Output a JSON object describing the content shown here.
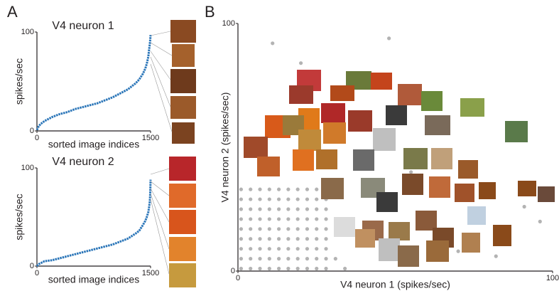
{
  "panels": [
    "A",
    "B"
  ],
  "chart_data": [
    {
      "type": "line",
      "title": "V4 neuron 1",
      "xlabel": "sorted image indices",
      "ylabel": "spikes/sec",
      "xlim": [
        0,
        1500
      ],
      "ylim": [
        0,
        100
      ],
      "xticks": [
        0,
        1500
      ],
      "yticks": [
        0,
        100
      ],
      "x": [
        0,
        25,
        50,
        100,
        200,
        300,
        400,
        500,
        600,
        700,
        800,
        900,
        1000,
        1100,
        1200,
        1300,
        1350,
        1400,
        1430,
        1450,
        1470,
        1480,
        1490,
        1495,
        1500
      ],
      "series": [
        {
          "color": "#2a75b8",
          "values": [
            1,
            5,
            7,
            10,
            14,
            17,
            19,
            22,
            24,
            26,
            28,
            31,
            34,
            38,
            42,
            48,
            52,
            58,
            63,
            68,
            75,
            82,
            88,
            92,
            97
          ]
        }
      ]
    },
    {
      "type": "line",
      "title": "V4 neuron 2",
      "xlabel": "sorted image indices",
      "ylabel": "spikes/sec",
      "xlim": [
        0,
        1500
      ],
      "ylim": [
        0,
        100
      ],
      "xticks": [
        0,
        1500
      ],
      "yticks": [
        0,
        100
      ],
      "x": [
        0,
        25,
        50,
        100,
        200,
        300,
        400,
        500,
        600,
        700,
        800,
        900,
        1000,
        1100,
        1200,
        1300,
        1350,
        1400,
        1430,
        1450,
        1470,
        1480,
        1490,
        1495,
        1500
      ],
      "series": [
        {
          "color": "#2a75b8",
          "values": [
            0,
            2,
            3,
            5,
            6,
            8,
            10,
            12,
            14,
            16,
            18,
            20,
            22,
            25,
            28,
            33,
            36,
            42,
            46,
            50,
            55,
            60,
            66,
            74,
            88
          ]
        }
      ]
    },
    {
      "type": "scatter",
      "xlabel": "V4 neuron 1 (spikes/sec)",
      "ylabel": "V4 neuron 2 (spikes/sec)",
      "xlim": [
        0,
        100
      ],
      "ylim": [
        0,
        100
      ],
      "xticks": [
        0,
        100
      ],
      "yticks": [
        0,
        100
      ],
      "x": [
        1,
        4,
        7,
        10,
        13,
        16,
        19,
        22,
        25,
        28,
        1,
        4,
        7,
        10,
        13,
        16,
        19,
        22,
        25,
        28,
        1,
        4,
        7,
        10,
        13,
        16,
        19,
        22,
        25,
        28,
        1,
        4,
        7,
        10,
        13,
        16,
        19,
        22,
        25,
        28,
        1,
        4,
        7,
        10,
        13,
        16,
        19,
        22,
        25,
        28,
        1,
        4,
        7,
        10,
        13,
        16,
        19,
        22,
        25,
        28,
        1,
        4,
        7,
        10,
        13,
        16,
        19,
        22,
        25,
        28,
        1,
        4,
        7,
        10,
        13,
        16,
        19,
        22,
        25,
        28,
        1,
        4,
        7,
        10,
        13,
        16,
        19,
        22,
        25,
        28,
        48,
        11,
        20,
        96,
        91,
        82,
        63,
        40,
        55,
        34,
        31,
        70
      ],
      "series": [
        {
          "color": "#b3b3b3",
          "values": [
            1,
            1,
            1,
            1,
            1,
            1,
            1,
            1,
            1,
            1,
            5,
            5,
            5,
            5,
            5,
            5,
            5,
            5,
            5,
            5,
            9,
            9,
            9,
            9,
            9,
            9,
            9,
            9,
            9,
            9,
            13,
            13,
            13,
            13,
            13,
            13,
            13,
            13,
            13,
            13,
            17,
            17,
            17,
            17,
            17,
            17,
            17,
            17,
            17,
            17,
            21,
            21,
            21,
            21,
            21,
            21,
            21,
            21,
            21,
            21,
            25,
            25,
            25,
            25,
            25,
            25,
            25,
            25,
            25,
            25,
            29,
            29,
            29,
            29,
            29,
            29,
            29,
            29,
            29,
            29,
            33,
            33,
            33,
            33,
            33,
            33,
            33,
            33,
            33,
            33,
            94,
            92,
            84,
            20,
            26,
            6,
            14,
            34,
            40,
            1,
            5,
            8
          ]
        }
      ]
    }
  ]
}
